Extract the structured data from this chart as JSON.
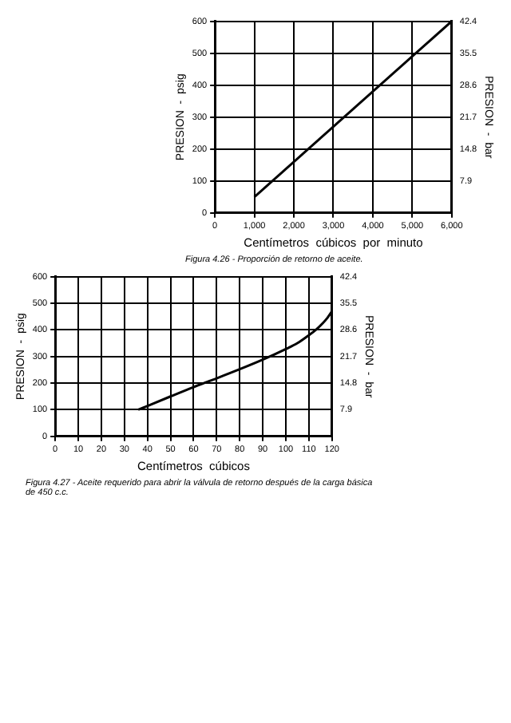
{
  "chart_data": [
    {
      "type": "line",
      "xlabel": "Centímetros  cúbicos  por  minuto",
      "ylabel": "PRESION  -  psig",
      "y2label": "PRESION  -  bar",
      "annotations": [
        "Figura 4.26 - Proporción de retorno de aceite."
      ],
      "series": [
        {
          "color": "#000000",
          "x": [
            1000,
            6000
          ],
          "values": [
            50,
            600
          ]
        }
      ],
      "xlim": [
        0,
        6000
      ],
      "xticks": [
        0,
        {
          "value": 1000,
          "label": "1,000"
        },
        {
          "value": 2000,
          "label": "2,000"
        },
        {
          "value": 3000,
          "label": "3,000"
        },
        {
          "value": 4000,
          "label": "4,000"
        },
        {
          "value": 5000,
          "label": "5,000"
        },
        {
          "value": 6000,
          "label": "6,000"
        }
      ],
      "ylim": [
        0,
        600
      ],
      "yticks": [
        0,
        100,
        200,
        300,
        400,
        500,
        600
      ],
      "y2lim": [
        1.0,
        42.4
      ],
      "y2ticks": [
        7.9,
        14.8,
        21.7,
        28.6,
        35.5,
        42.4
      ],
      "grid": true,
      "marker": "none",
      "legend": false
    },
    {
      "type": "line",
      "xlabel": "Centímetros  cúbicos",
      "ylabel": "PRESION  -  psig",
      "y2label": "PRESION  -  bar",
      "annotations": [
        "Figura 4.27 - Aceite requerido para abrir la válvula de retorno después de la carga básica de 450 c.c."
      ],
      "series": [
        {
          "color": "#000000",
          "x": [
            36,
            50,
            60,
            70,
            80,
            90,
            100,
            105,
            110,
            113,
            116,
            118,
            120
          ],
          "values": [
            100,
            150,
            185,
            218,
            252,
            288,
            328,
            350,
            380,
            400,
            425,
            445,
            470
          ]
        }
      ],
      "xlim": [
        0,
        120
      ],
      "xticks": [
        0,
        10,
        20,
        30,
        40,
        50,
        60,
        70,
        80,
        90,
        100,
        110,
        120
      ],
      "ylim": [
        0,
        600
      ],
      "yticks": [
        0,
        100,
        200,
        300,
        400,
        500,
        600
      ],
      "y2lim": [
        1.0,
        42.4
      ],
      "y2ticks": [
        7.9,
        14.8,
        21.7,
        28.6,
        35.5,
        42.4
      ],
      "grid": true,
      "marker": "none",
      "legend": false
    }
  ]
}
